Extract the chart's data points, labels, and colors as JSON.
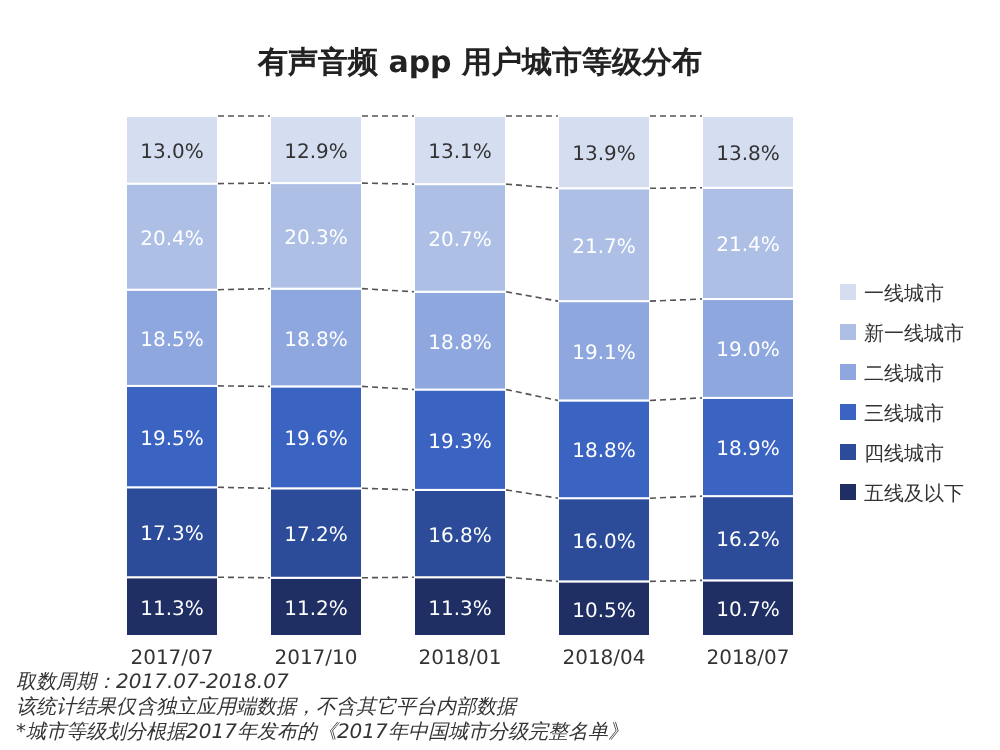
{
  "chart_data": {
    "type": "bar",
    "stacked": true,
    "legend": "right",
    "title": "有声音频 app 用户城市等级分布",
    "categories": [
      "2017/07",
      "2017/10",
      "2018/01",
      "2018/04",
      "2018/07"
    ],
    "series": [
      {
        "name": "五线及以下",
        "color": "#1f2e63",
        "values": [
          11.3,
          11.2,
          11.3,
          10.5,
          10.7
        ],
        "value_labels": [
          "11.3%",
          "11.2%",
          "11.3%",
          "10.5%",
          "10.7%"
        ]
      },
      {
        "name": "四线城市",
        "color": "#2c4c99",
        "values": [
          17.3,
          17.2,
          16.8,
          16.0,
          16.2
        ],
        "value_labels": [
          "17.3%",
          "17.2%",
          "16.8%",
          "16.0%",
          "16.2%"
        ]
      },
      {
        "name": "三线城市",
        "color": "#3b63c2",
        "values": [
          19.5,
          19.6,
          19.3,
          18.8,
          18.9
        ],
        "value_labels": [
          "19.5%",
          "19.6%",
          "19.3%",
          "18.8%",
          "18.9%"
        ]
      },
      {
        "name": "二线城市",
        "color": "#8ea7df",
        "values": [
          18.5,
          18.8,
          18.8,
          19.1,
          19.0
        ],
        "value_labels": [
          "18.5%",
          "18.8%",
          "18.8%",
          "19.1%",
          "19.0%"
        ]
      },
      {
        "name": "新一线城市",
        "color": "#aebfe6",
        "values": [
          20.4,
          20.3,
          20.7,
          21.7,
          21.4
        ],
        "value_labels": [
          "20.4%",
          "20.3%",
          "20.7%",
          "21.7%",
          "21.4%"
        ]
      },
      {
        "name": "一线城市",
        "color": "#d5ddf0",
        "values": [
          13.0,
          12.9,
          13.1,
          13.9,
          13.8
        ],
        "value_labels": [
          "13.0%",
          "12.9%",
          "13.1%",
          "13.9%",
          "13.8%"
        ]
      }
    ],
    "annotations": [
      "取数周期：2017.07-2018.07",
      "该统计结果仅含独立应用端数据，不含其它平台内部数据",
      "*城市等级划分根据2017年发布的《2017年中国城市分级完整名单》"
    ]
  }
}
